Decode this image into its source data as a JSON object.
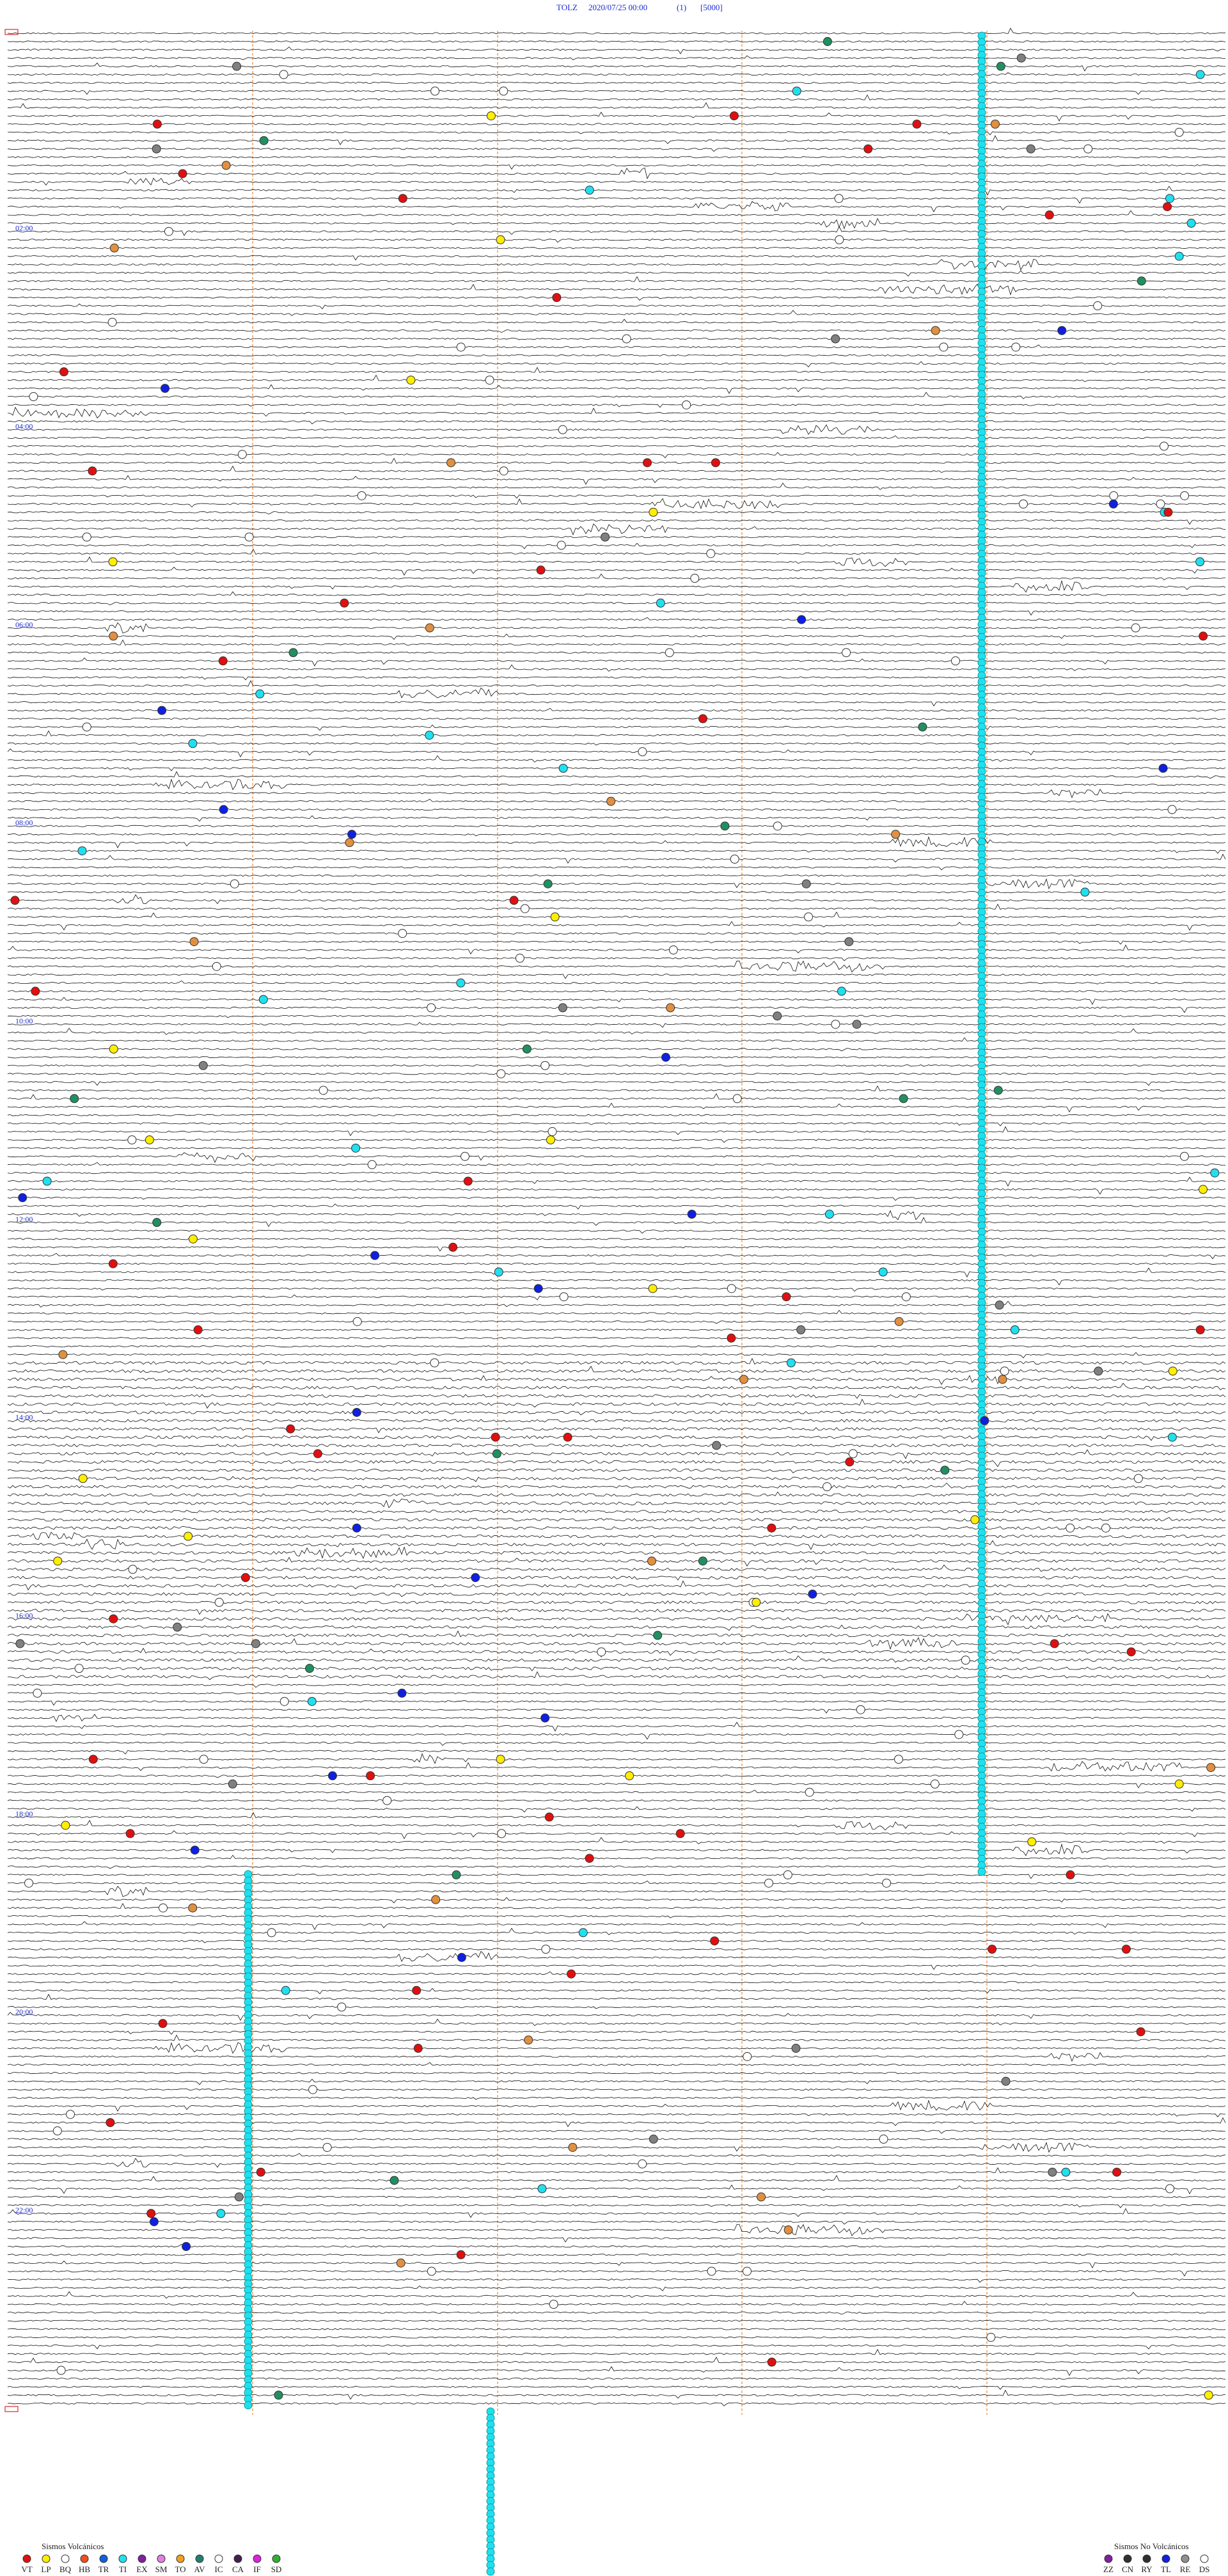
{
  "header": {
    "station": "TOLZ",
    "datetime": "2020/07/25 00:00",
    "component": "(1)",
    "scale": "[5000]"
  },
  "hour_labels": [
    "02:00",
    "04:00",
    "06:00",
    "08:00",
    "10:00",
    "12:00",
    "14:00",
    "16:00",
    "18:00",
    "20:00",
    "22:00"
  ],
  "legend": {
    "volcanic": {
      "title": "Sismos Volcánicos",
      "items": [
        "VT",
        "LP",
        "BQ",
        "HB",
        "TR",
        "TI",
        "EX",
        "SM",
        "TO",
        "AV",
        "IC",
        "CA",
        "IF",
        "SD"
      ]
    },
    "non_volcanic": {
      "title": "Sismos No Volcánicos",
      "items": [
        "ZZ",
        "CN",
        "RY",
        "TL",
        "RE",
        "DS"
      ]
    }
  }
}
